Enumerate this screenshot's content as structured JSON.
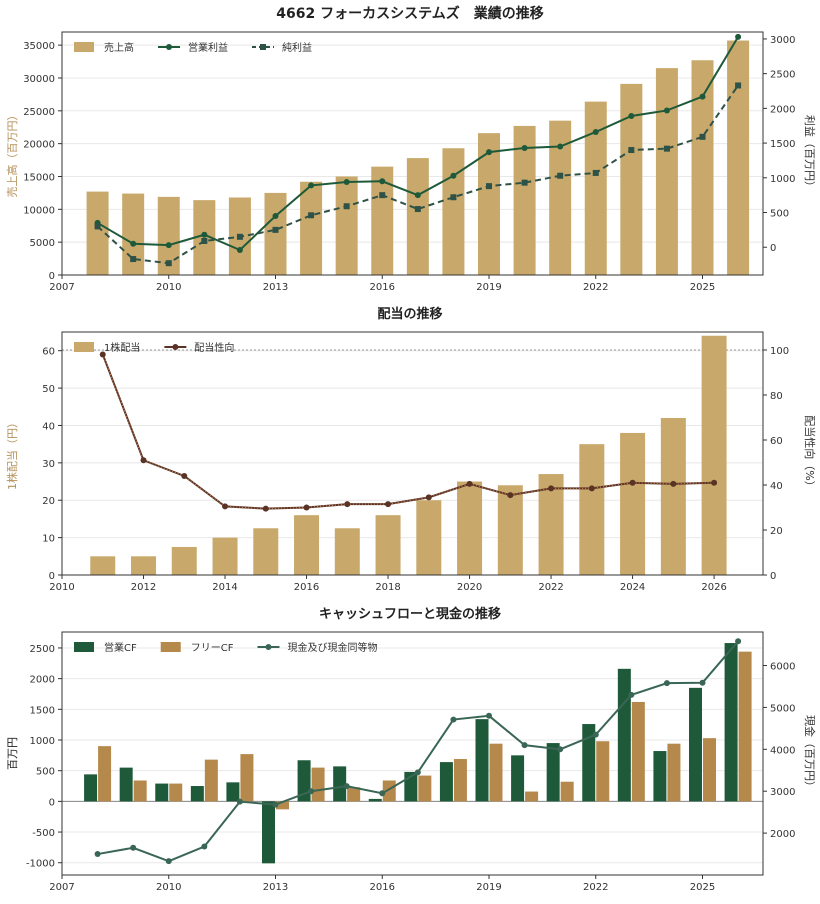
{
  "colors": {
    "gold": "#c8a96b",
    "dark_green": "#1e5a3a",
    "slate": "#2f5248",
    "brown": "#5b3325",
    "brown_dot": "#d08a5a",
    "gold_dark": "#b5894b",
    "cash_line": "#3a6656",
    "axis_label_gold": "#b5915a"
  },
  "chart_data": [
    {
      "type": "bar+line",
      "title": "4662 フォーカスシステムズ　業績の推移",
      "ylabel_left": "売上高（百万円）",
      "ylabel_right": "利益（百万円）",
      "xlim": [
        2007,
        2026.7
      ],
      "xticks": [
        2007,
        2010,
        2013,
        2016,
        2019,
        2022,
        2025
      ],
      "ylim_left": [
        0,
        37000
      ],
      "yticks_left": [
        0,
        5000,
        10000,
        15000,
        20000,
        25000,
        30000,
        35000
      ],
      "ylim_right": [
        -400,
        3100
      ],
      "yticks_right": [
        0,
        500,
        1000,
        1500,
        2000,
        2500,
        3000
      ],
      "legend_placement": "top-left",
      "x": [
        2008,
        2009,
        2010,
        2011,
        2012,
        2013,
        2014,
        2015,
        2016,
        2017,
        2018,
        2019,
        2020,
        2021,
        2022,
        2023,
        2024,
        2025,
        2026
      ],
      "series": [
        {
          "name": "売上高",
          "kind": "bar",
          "axis": "left",
          "values": [
            12700,
            12400,
            11900,
            11400,
            11800,
            12500,
            14200,
            15000,
            16500,
            17800,
            19300,
            21600,
            22700,
            23500,
            26400,
            29100,
            31500,
            32700,
            35700
          ]
        },
        {
          "name": "営業利益",
          "kind": "line",
          "axis": "left_right",
          "values": [
            350,
            50,
            30,
            180,
            -40,
            450,
            890,
            940,
            950,
            750,
            1030,
            1370,
            1430,
            1450,
            1660,
            1890,
            1970,
            2170,
            3030
          ]
        },
        {
          "name": "純利益",
          "kind": "dashed",
          "axis": "right",
          "values": [
            300,
            -170,
            -230,
            90,
            150,
            250,
            460,
            590,
            750,
            550,
            720,
            880,
            930,
            1030,
            1070,
            1400,
            1420,
            1590,
            2330
          ]
        }
      ]
    },
    {
      "type": "bar+line",
      "title": "配当の推移",
      "ylabel_left": "1株配当（円）",
      "ylabel_right": "配当性向（%）",
      "xlim": [
        2010,
        2027.2
      ],
      "xticks": [
        2010,
        2012,
        2014,
        2016,
        2018,
        2020,
        2022,
        2024,
        2026
      ],
      "ylim_left": [
        0,
        65
      ],
      "yticks_left": [
        0,
        10,
        20,
        30,
        40,
        50,
        60
      ],
      "ylim_right": [
        0,
        108
      ],
      "yticks_right": [
        0,
        20,
        40,
        60,
        80,
        100
      ],
      "reference_line": 100,
      "legend_placement": "top-left",
      "x": [
        2011,
        2012,
        2013,
        2014,
        2015,
        2016,
        2017,
        2018,
        2019,
        2020,
        2021,
        2022,
        2023,
        2024,
        2025,
        2026
      ],
      "series": [
        {
          "name": "1株配当",
          "kind": "bar",
          "axis": "left",
          "values": [
            5,
            5,
            7.5,
            10,
            12.5,
            16,
            12.5,
            16,
            20,
            25,
            24,
            27,
            35,
            38,
            42,
            64
          ]
        },
        {
          "name": "配当性向",
          "kind": "line",
          "axis": "right",
          "values": [
            98,
            51,
            44,
            30.5,
            29.5,
            30,
            31.5,
            31.5,
            34.5,
            40.5,
            35.5,
            38.5,
            38.5,
            41,
            40.5,
            41
          ]
        }
      ]
    },
    {
      "type": "bar+line",
      "title": "キャッシュフローと現金の推移",
      "ylabel_left": "百万円",
      "ylabel_right": "現金（百万円）",
      "xlim": [
        2007,
        2026.7
      ],
      "xticks": [
        2007,
        2010,
        2013,
        2016,
        2019,
        2022,
        2025
      ],
      "ylim_left": [
        -1200,
        2760
      ],
      "yticks_left": [
        -1000,
        -500,
        0,
        500,
        1000,
        1500,
        2000,
        2500
      ],
      "ylim_right": [
        1000,
        6800
      ],
      "yticks_right": [
        2000,
        3000,
        4000,
        5000,
        6000
      ],
      "legend_placement": "top-left",
      "x": [
        2008,
        2009,
        2010,
        2011,
        2012,
        2013,
        2014,
        2015,
        2016,
        2017,
        2018,
        2019,
        2020,
        2021,
        2022,
        2023,
        2024,
        2025,
        2026
      ],
      "series": [
        {
          "name": "営業CF",
          "kind": "bar",
          "axis": "left",
          "values": [
            440,
            550,
            290,
            250,
            310,
            -1010,
            670,
            570,
            40,
            480,
            640,
            1340,
            750,
            950,
            1260,
            2160,
            820,
            1850,
            2580
          ]
        },
        {
          "name": "フリーCF",
          "kind": "bar",
          "axis": "left",
          "values": [
            900,
            340,
            290,
            680,
            770,
            -130,
            550,
            230,
            340,
            420,
            690,
            940,
            160,
            320,
            980,
            1620,
            940,
            1030,
            2440
          ]
        },
        {
          "name": "現金及び現金同等物",
          "kind": "line",
          "axis": "right",
          "values": [
            1500,
            1650,
            1330,
            1680,
            2750,
            2680,
            3000,
            3120,
            2950,
            3450,
            4710,
            4800,
            4100,
            4000,
            4350,
            5300,
            5580,
            5590,
            6580
          ]
        }
      ]
    }
  ]
}
